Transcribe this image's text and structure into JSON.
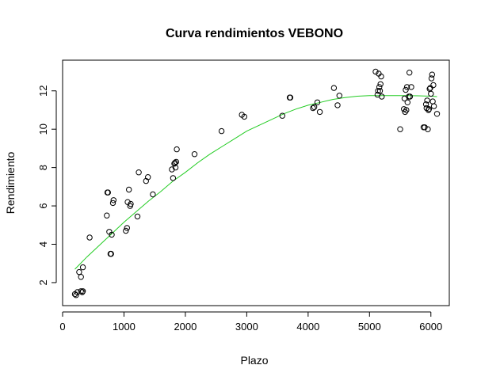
{
  "chart_data": {
    "type": "scatter",
    "title": "Curva rendimientos VEBONO",
    "xlabel": "Plazo",
    "ylabel": "Rendimiento",
    "xlim": [
      0,
      6300
    ],
    "ylim": [
      0.8,
      13.6
    ],
    "x_ticks": [
      0,
      1000,
      2000,
      3000,
      4000,
      5000,
      6000
    ],
    "y_ticks": [
      2,
      4,
      6,
      8,
      10,
      12
    ],
    "grid": false,
    "colors": {
      "points": "#000000",
      "fit_line": "#22cc22",
      "frame": "#000000"
    },
    "series": [
      {
        "kind": "points",
        "points": [
          [
            200,
            1.4
          ],
          [
            220,
            1.35
          ],
          [
            240,
            1.5
          ],
          [
            300,
            1.55
          ],
          [
            320,
            1.5
          ],
          [
            330,
            1.55
          ],
          [
            270,
            2.55
          ],
          [
            300,
            2.3
          ],
          [
            330,
            2.8
          ],
          [
            440,
            4.35
          ],
          [
            720,
            5.5
          ],
          [
            730,
            6.7
          ],
          [
            740,
            6.7
          ],
          [
            760,
            4.65
          ],
          [
            780,
            3.5
          ],
          [
            790,
            3.5
          ],
          [
            800,
            4.5
          ],
          [
            820,
            6.15
          ],
          [
            830,
            6.3
          ],
          [
            1030,
            4.7
          ],
          [
            1050,
            4.85
          ],
          [
            1060,
            6.2
          ],
          [
            1080,
            6.85
          ],
          [
            1100,
            6.0
          ],
          [
            1110,
            6.1
          ],
          [
            1220,
            5.45
          ],
          [
            1240,
            7.75
          ],
          [
            1360,
            7.3
          ],
          [
            1390,
            7.5
          ],
          [
            1470,
            6.6
          ],
          [
            1780,
            7.9
          ],
          [
            1800,
            7.45
          ],
          [
            1820,
            8.2
          ],
          [
            1830,
            8.25
          ],
          [
            1840,
            8.0
          ],
          [
            1850,
            8.3
          ],
          [
            1860,
            8.95
          ],
          [
            2150,
            8.7
          ],
          [
            2590,
            9.9
          ],
          [
            2920,
            10.75
          ],
          [
            2960,
            10.65
          ],
          [
            3580,
            10.7
          ],
          [
            3700,
            11.65
          ],
          [
            3710,
            11.65
          ],
          [
            4080,
            11.1
          ],
          [
            4100,
            11.15
          ],
          [
            4150,
            11.4
          ],
          [
            4190,
            10.9
          ],
          [
            4420,
            12.15
          ],
          [
            4480,
            11.25
          ],
          [
            4510,
            11.75
          ],
          [
            5100,
            13.0
          ],
          [
            5130,
            11.8
          ],
          [
            5140,
            12.0
          ],
          [
            5150,
            12.9
          ],
          [
            5160,
            12.2
          ],
          [
            5170,
            12.0
          ],
          [
            5180,
            12.35
          ],
          [
            5190,
            12.75
          ],
          [
            5200,
            11.7
          ],
          [
            5500,
            10.0
          ],
          [
            5560,
            11.05
          ],
          [
            5570,
            11.6
          ],
          [
            5580,
            10.9
          ],
          [
            5590,
            12.05
          ],
          [
            5600,
            11.0
          ],
          [
            5610,
            12.2
          ],
          [
            5620,
            11.4
          ],
          [
            5640,
            11.7
          ],
          [
            5650,
            12.95
          ],
          [
            5660,
            11.7
          ],
          [
            5680,
            12.2
          ],
          [
            5880,
            10.1
          ],
          [
            5900,
            10.1
          ],
          [
            5920,
            11.3
          ],
          [
            5930,
            11.1
          ],
          [
            5940,
            11.5
          ],
          [
            5950,
            10.0
          ],
          [
            5960,
            11.0
          ],
          [
            5970,
            11.05
          ],
          [
            5980,
            12.1
          ],
          [
            5990,
            12.15
          ],
          [
            6000,
            11.85
          ],
          [
            6010,
            12.65
          ],
          [
            6020,
            12.85
          ],
          [
            6030,
            11.45
          ],
          [
            6040,
            12.3
          ],
          [
            6050,
            11.2
          ],
          [
            6100,
            10.8
          ]
        ]
      },
      {
        "kind": "fit_line",
        "points": [
          [
            200,
            2.7
          ],
          [
            400,
            3.35
          ],
          [
            600,
            3.95
          ],
          [
            800,
            4.55
          ],
          [
            1000,
            5.15
          ],
          [
            1200,
            5.7
          ],
          [
            1400,
            6.25
          ],
          [
            1600,
            6.75
          ],
          [
            1800,
            7.3
          ],
          [
            2000,
            7.75
          ],
          [
            2200,
            8.25
          ],
          [
            2400,
            8.7
          ],
          [
            2600,
            9.1
          ],
          [
            2800,
            9.5
          ],
          [
            3000,
            9.9
          ],
          [
            3200,
            10.2
          ],
          [
            3400,
            10.5
          ],
          [
            3600,
            10.8
          ],
          [
            3800,
            11.05
          ],
          [
            4000,
            11.25
          ],
          [
            4200,
            11.4
          ],
          [
            4400,
            11.55
          ],
          [
            4600,
            11.65
          ],
          [
            4800,
            11.72
          ],
          [
            5000,
            11.75
          ],
          [
            5200,
            11.75
          ],
          [
            5400,
            11.75
          ],
          [
            5600,
            11.75
          ],
          [
            5800,
            11.74
          ],
          [
            6000,
            11.72
          ],
          [
            6100,
            11.7
          ]
        ]
      }
    ]
  }
}
